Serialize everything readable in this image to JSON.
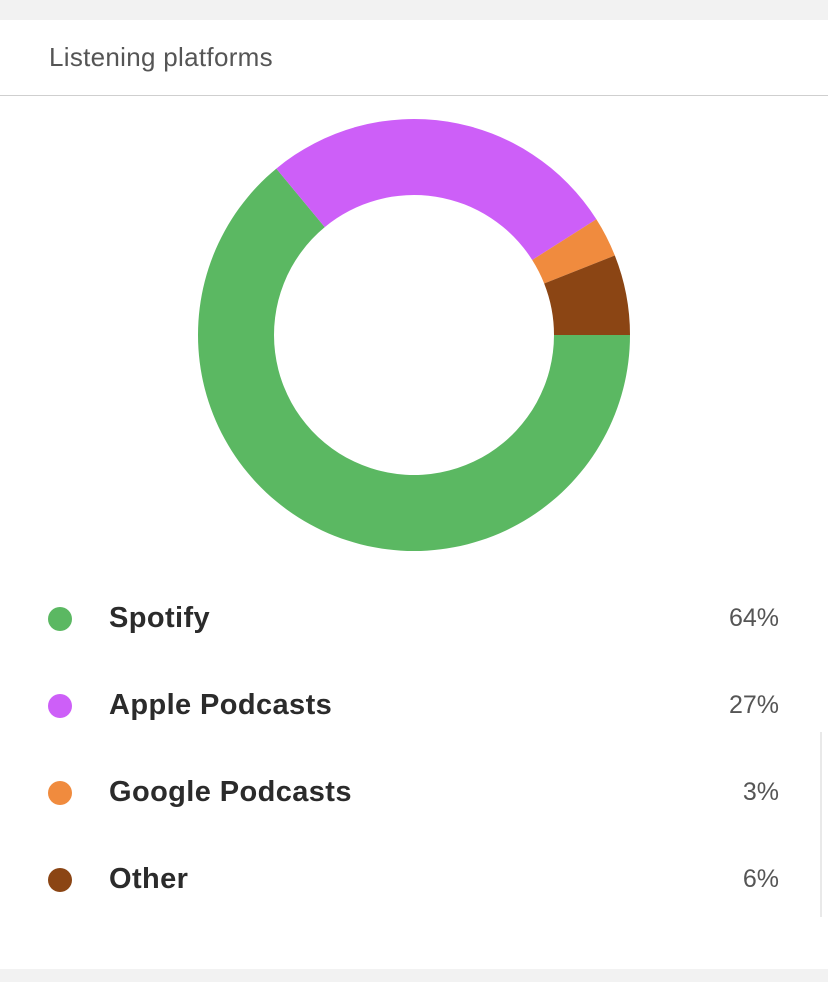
{
  "card": {
    "title": "Listening platforms"
  },
  "chart_data": {
    "type": "pie",
    "variant": "donut",
    "categories": [
      "Spotify",
      "Apple Podcasts",
      "Google Podcasts",
      "Other"
    ],
    "values": [
      64,
      27,
      3,
      6
    ],
    "value_labels": [
      "64%",
      "27%",
      "3%",
      "6%"
    ],
    "colors": [
      "#5bb862",
      "#cd5ff8",
      "#f08b3e",
      "#8b4514"
    ],
    "unit": "%",
    "legend_position": "bottom"
  }
}
